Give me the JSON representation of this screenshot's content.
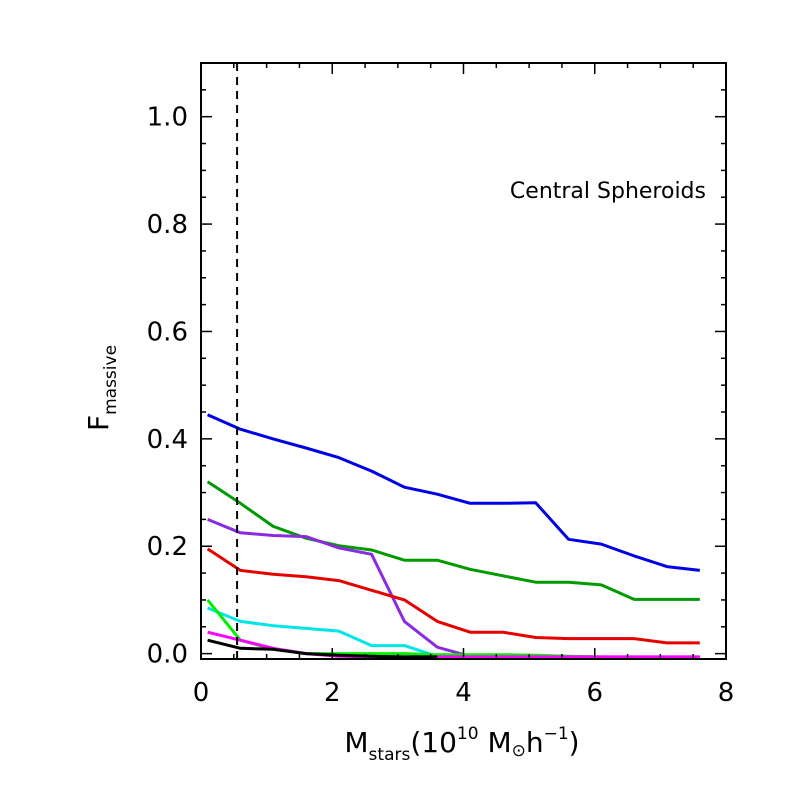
{
  "chart_data": {
    "type": "line",
    "title": "",
    "annotation": "Central Spheroids",
    "xlabel": {
      "main": "M",
      "sub": "stars",
      "open": "(10",
      "sup": "10",
      "unit": " M",
      "sun": "⊙",
      "h": "h",
      "hsup": "−1",
      "close": ")"
    },
    "ylabel": {
      "main": "F",
      "sub": "massive"
    },
    "xlim": [
      0,
      8
    ],
    "ylim": [
      -0.01,
      1.1
    ],
    "x_major_ticks": [
      0,
      2,
      4,
      6,
      8
    ],
    "x_major_tick_labels": [
      "0",
      "2",
      "4",
      "6",
      "8"
    ],
    "x_minor_step": 0.5,
    "y_major_ticks": [
      0.0,
      0.2,
      0.4,
      0.6,
      0.8,
      1.0
    ],
    "y_major_tick_labels": [
      "0.0",
      "0.2",
      "0.4",
      "0.6",
      "0.8",
      "1.0"
    ],
    "y_minor_step": 0.05,
    "vertical_reference_line": {
      "x": 0.55,
      "style": "dashed",
      "color": "#000000"
    },
    "series": [
      {
        "name": "blue",
        "color": "#0000e6",
        "x": [
          0.1,
          0.6,
          1.1,
          1.6,
          2.1,
          2.6,
          3.1,
          3.6,
          4.1,
          4.6,
          5.1,
          5.6,
          6.1,
          6.6,
          7.1,
          7.6
        ],
        "y": [
          0.445,
          0.418,
          0.4,
          0.383,
          0.365,
          0.34,
          0.31,
          0.297,
          0.28,
          0.28,
          0.281,
          0.213,
          0.204,
          0.182,
          0.162,
          0.155
        ]
      },
      {
        "name": "green",
        "color": "#009a00",
        "x": [
          0.1,
          0.6,
          1.1,
          1.6,
          2.1,
          2.6,
          3.1,
          3.6,
          4.1,
          4.6,
          5.1,
          5.6,
          6.1,
          6.6,
          7.1,
          7.6
        ],
        "y": [
          0.32,
          0.28,
          0.237,
          0.215,
          0.201,
          0.193,
          0.174,
          0.174,
          0.157,
          0.145,
          0.133,
          0.133,
          0.128,
          0.101,
          0.101,
          0.101
        ]
      },
      {
        "name": "purple",
        "color": "#8a2be2",
        "x": [
          0.1,
          0.6,
          1.1,
          1.6,
          2.1,
          2.6,
          3.1,
          3.6,
          4.1,
          4.6,
          5.1,
          5.6,
          6.1,
          6.6,
          7.1,
          7.6
        ],
        "y": [
          0.25,
          0.225,
          0.22,
          0.218,
          0.197,
          0.185,
          0.06,
          0.012,
          -0.005,
          -0.007,
          -0.007,
          -0.007,
          -0.007,
          -0.007,
          -0.007,
          -0.007
        ]
      },
      {
        "name": "red",
        "color": "#e60000",
        "x": [
          0.1,
          0.6,
          1.1,
          1.6,
          2.1,
          2.6,
          3.1,
          3.6,
          4.1,
          4.6,
          5.1,
          5.6,
          6.1,
          6.6,
          7.1,
          7.6
        ],
        "y": [
          0.195,
          0.155,
          0.148,
          0.143,
          0.136,
          0.118,
          0.1,
          0.06,
          0.04,
          0.04,
          0.03,
          0.028,
          0.028,
          0.028,
          0.02,
          0.02
        ]
      },
      {
        "name": "cyan",
        "color": "#00e6e6",
        "x": [
          0.1,
          0.6,
          1.1,
          1.6,
          2.1,
          2.6,
          3.1,
          3.6,
          4.1,
          4.6,
          5.1,
          5.6,
          6.1,
          6.6,
          7.1,
          7.6
        ],
        "y": [
          0.085,
          0.06,
          0.052,
          0.047,
          0.042,
          0.015,
          0.015,
          -0.005,
          -0.006,
          -0.006,
          -0.006,
          -0.006,
          -0.006,
          -0.006,
          -0.006,
          -0.006
        ]
      },
      {
        "name": "lime",
        "color": "#00f000",
        "x": [
          0.1,
          0.6,
          1.1,
          1.6,
          2.1,
          2.6,
          3.1,
          3.6,
          4.1,
          4.6,
          5.1,
          5.6,
          6.1,
          6.6,
          7.1,
          7.6
        ],
        "y": [
          0.1,
          0.025,
          0.008,
          0.0,
          0.0,
          0.0,
          0.0,
          -0.002,
          -0.002,
          -0.002,
          -0.003,
          -0.005,
          -0.006,
          -0.007,
          -0.007,
          -0.007
        ]
      },
      {
        "name": "magenta",
        "color": "#ff00ff",
        "x": [
          0.1,
          0.6,
          1.1,
          1.6,
          2.1,
          2.6,
          3.1,
          3.6,
          4.1,
          4.6,
          5.1,
          5.6,
          6.1,
          6.6,
          7.1,
          7.6
        ],
        "y": [
          0.04,
          0.025,
          0.01,
          0.0,
          -0.005,
          -0.006,
          -0.006,
          -0.006,
          -0.006,
          -0.006,
          -0.006,
          -0.006,
          -0.006,
          -0.006,
          -0.006,
          -0.006
        ]
      },
      {
        "name": "black",
        "color": "#000000",
        "x": [
          0.1,
          0.6,
          1.1,
          1.6,
          2.1,
          2.6,
          3.1,
          3.6
        ],
        "y": [
          0.025,
          0.01,
          0.008,
          0.0,
          -0.003,
          -0.005,
          -0.006,
          -0.006
        ]
      }
    ]
  }
}
